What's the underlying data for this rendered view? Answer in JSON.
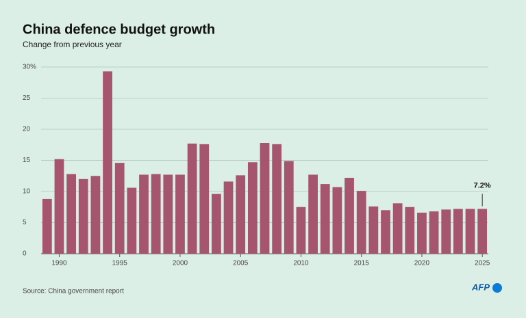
{
  "chart_data": {
    "type": "bar",
    "title": "China defence budget growth",
    "subtitle": "Change from previous year",
    "x": [
      1989,
      1990,
      1991,
      1992,
      1993,
      1994,
      1995,
      1996,
      1997,
      1998,
      1999,
      2000,
      2001,
      2002,
      2003,
      2004,
      2005,
      2006,
      2007,
      2008,
      2009,
      2010,
      2011,
      2012,
      2013,
      2014,
      2015,
      2016,
      2017,
      2018,
      2019,
      2020,
      2021,
      2022,
      2023,
      2024,
      2025
    ],
    "values": [
      8.8,
      15.2,
      12.8,
      12.0,
      12.5,
      29.3,
      14.6,
      10.6,
      12.7,
      12.8,
      12.7,
      12.7,
      17.7,
      17.6,
      9.6,
      11.6,
      12.6,
      14.7,
      17.8,
      17.6,
      14.9,
      7.5,
      12.7,
      11.2,
      10.7,
      12.2,
      10.1,
      7.6,
      7.0,
      8.1,
      7.5,
      6.6,
      6.8,
      7.1,
      7.2,
      7.2,
      7.2
    ],
    "value_labels": [
      null,
      null,
      null,
      null,
      null,
      null,
      null,
      null,
      null,
      null,
      null,
      null,
      null,
      null,
      null,
      null,
      null,
      null,
      null,
      null,
      null,
      null,
      null,
      null,
      null,
      null,
      null,
      null,
      null,
      null,
      null,
      null,
      null,
      null,
      null,
      null,
      "7.2%"
    ],
    "color": "#a5566e",
    "xlim": [
      1988.5,
      2025.5
    ],
    "xticks": [
      1990,
      1995,
      2000,
      2005,
      2010,
      2015,
      2020,
      2025
    ],
    "ylim": [
      0,
      30
    ],
    "yticks": [
      0,
      5,
      10,
      15,
      20,
      25,
      {
        "value": 30,
        "label": "30%"
      }
    ],
    "grid": true,
    "source": "Source: China government report",
    "logo": "AFP"
  }
}
